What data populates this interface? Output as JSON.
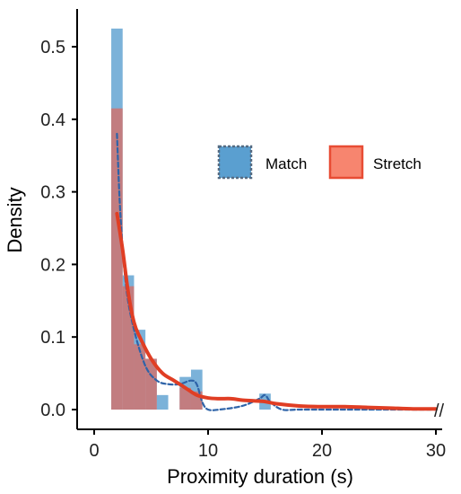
{
  "chart_data": {
    "type": "histogram",
    "xlabel": "Proximity duration (s)",
    "ylabel": "Density",
    "xlim": [
      0,
      30
    ],
    "ylim": [
      0,
      0.55
    ],
    "x_ticks": [
      0,
      10,
      20,
      30
    ],
    "y_ticks": [
      0.0,
      0.1,
      0.2,
      0.3,
      0.4,
      0.5
    ],
    "x_tick_labels": [
      "0",
      "10",
      "20",
      "30"
    ],
    "y_tick_labels": [
      "0.0",
      "0.1",
      "0.2",
      "0.3",
      "0.4",
      "0.5"
    ],
    "axis_break": "//",
    "grid": false,
    "legend_position": "upper-right",
    "bin_edges": [
      1.5,
      2.5,
      3.5,
      4.5,
      5.5,
      6.5,
      7.5,
      8.5,
      9.5,
      10.5,
      11.5,
      12.5,
      13.5,
      14.5,
      15.5
    ],
    "series": [
      {
        "name": "Match",
        "color": "#5a9fd0",
        "line_color": "#2e63a8",
        "line_style": "dashed",
        "bin_heights": [
          0.525,
          0.185,
          0.11,
          0.07,
          0.02,
          0.0,
          0.045,
          0.055,
          0.0,
          0.0,
          0.0,
          0.0,
          0.0,
          0.022
        ],
        "density_x": [
          2.0,
          2.3,
          2.8,
          3.5,
          4.5,
          5.5,
          6.5,
          7.5,
          8.5,
          9.0,
          9.5,
          10.0,
          11.0,
          13.0,
          14.5,
          15.0,
          15.5,
          16.5,
          18.0,
          21.0,
          24.0,
          27.0,
          30.0
        ],
        "density_y": [
          0.38,
          0.27,
          0.17,
          0.11,
          0.06,
          0.04,
          0.035,
          0.035,
          0.04,
          0.035,
          0.01,
          0.0,
          0.0,
          0.005,
          0.015,
          0.02,
          0.01,
          0.0,
          0.0,
          0.0,
          0.0,
          0.0,
          0.0
        ]
      },
      {
        "name": "Stretch",
        "color": "#f25a45",
        "line_color": "#e03e24",
        "line_style": "solid",
        "bin_heights": [
          0.415,
          0.17,
          0.09,
          0.07,
          0.0,
          0.0,
          0.03,
          0.025,
          0.0,
          0.0,
          0.0,
          0.0,
          0.0,
          0.0
        ],
        "density_x": [
          2.0,
          2.5,
          3.0,
          3.5,
          4.0,
          5.0,
          6.0,
          7.0,
          8.0,
          9.0,
          10.0,
          11.0,
          12.0,
          13.0,
          14.0,
          15.0,
          16.0,
          18.0,
          20.0,
          22.0,
          24.0,
          26.0,
          28.0,
          30.0
        ],
        "density_y": [
          0.27,
          0.22,
          0.16,
          0.12,
          0.1,
          0.07,
          0.05,
          0.04,
          0.03,
          0.02,
          0.016,
          0.015,
          0.015,
          0.013,
          0.012,
          0.011,
          0.008,
          0.005,
          0.004,
          0.004,
          0.003,
          0.002,
          0.001,
          0.001
        ]
      }
    ]
  }
}
